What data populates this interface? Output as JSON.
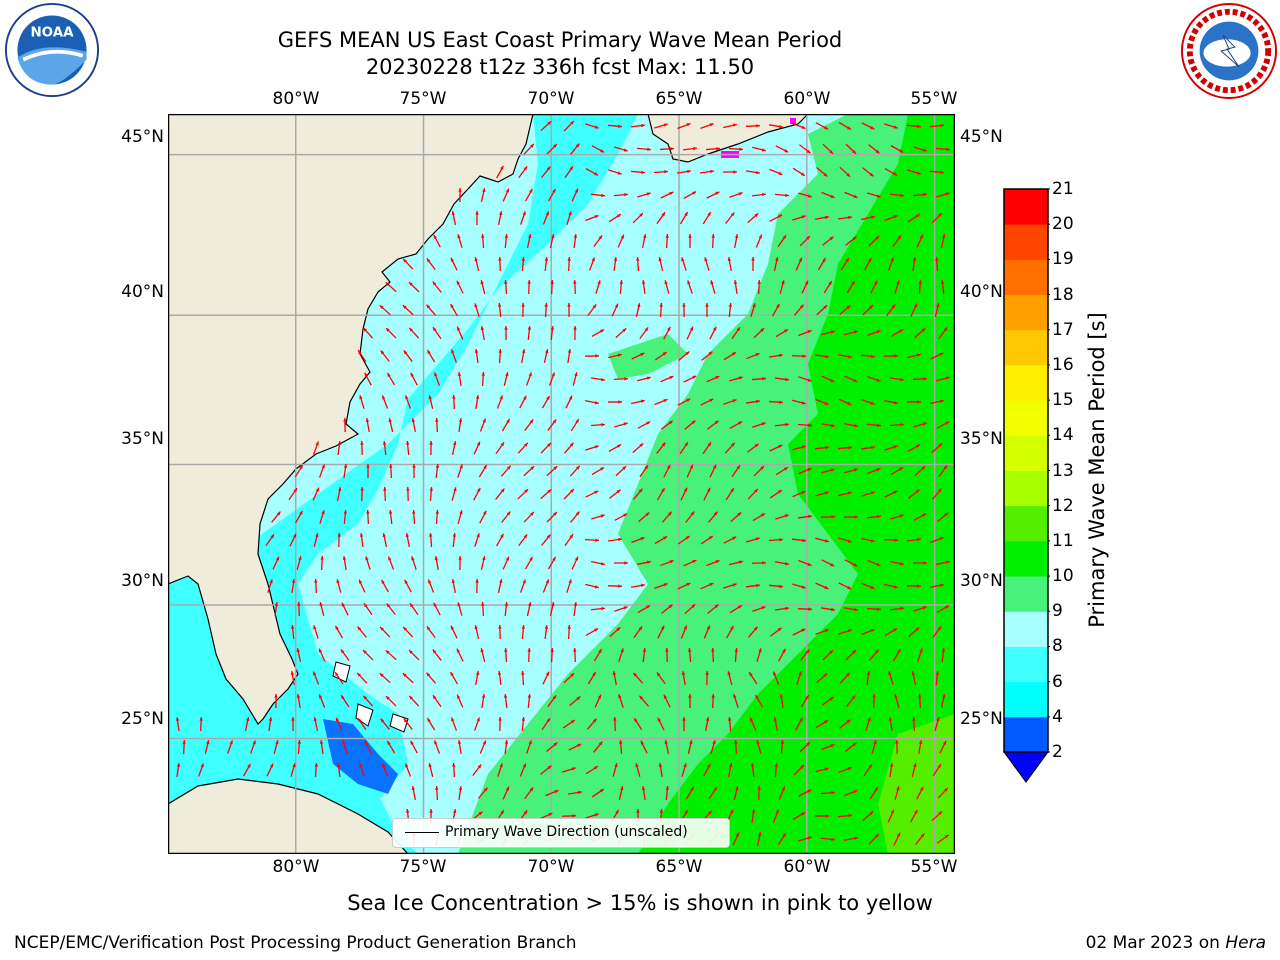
{
  "title": {
    "line1": "GEFS MEAN US East Coast Primary Wave Mean Period",
    "line2": "20230228 t12z 336h fcst   Max: 11.50"
  },
  "logos": {
    "left": "noaa-logo",
    "right": "nws-logo"
  },
  "map": {
    "lon_labels": [
      "80°W",
      "75°W",
      "70°W",
      "65°W",
      "60°W",
      "55°W"
    ],
    "lat_labels": [
      "45°N",
      "40°N",
      "35°N",
      "30°N",
      "25°N"
    ],
    "lon_values": [
      -80,
      -75,
      -70,
      -65,
      -60,
      -55
    ],
    "lat_values": [
      45,
      40,
      35,
      30,
      25
    ],
    "extent": {
      "lon_min": -85,
      "lon_max": -54.2,
      "lat_min": 20.5,
      "lat_max": 46.2
    },
    "land_color": "#efecdc",
    "arrow_color": "#ff0000",
    "legend_label": "Primary Wave Direction (unscaled)"
  },
  "colorbar": {
    "label": "Primary Wave Mean Period [s]",
    "ticks": [
      "2",
      "4",
      "6",
      "8",
      "9",
      "10",
      "11",
      "12",
      "13",
      "14",
      "15",
      "16",
      "17",
      "18",
      "19",
      "20",
      "21"
    ],
    "colors": [
      "#0059ff",
      "#00ffff",
      "#40ffff",
      "#a8ffff",
      "#48f17a",
      "#00ee00",
      "#55ee00",
      "#a8ff00",
      "#d4ff00",
      "#f2ff00",
      "#ffee00",
      "#ffc800",
      "#ffa000",
      "#ff7000",
      "#ff4400",
      "#ff0000"
    ],
    "under_color": "#0000ff"
  },
  "ice_note": "Sea Ice Concentration > 15% is shown in pink to yellow",
  "footer": {
    "left": "NCEP/EMC/Verification Post Processing Product Generation Branch",
    "right_date": "02 Mar 2023 on",
    "right_host": "Hera"
  }
}
